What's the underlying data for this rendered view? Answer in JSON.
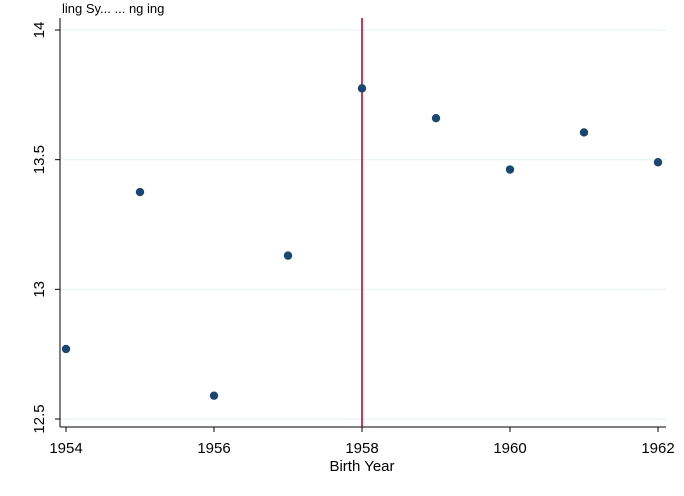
{
  "header": {
    "partial_text": "ling Sy... ... ng    ing"
  },
  "chart_data": {
    "type": "scatter",
    "title": "",
    "xlabel": "Birth Year",
    "ylabel": "",
    "x": [
      1954,
      1955,
      1956,
      1957,
      1958,
      1959,
      1960,
      1961,
      1962
    ],
    "y": [
      12.77,
      13.375,
      12.59,
      13.13,
      13.775,
      13.66,
      13.462,
      13.605,
      13.49
    ],
    "xlim": [
      1954,
      1962
    ],
    "ylim": [
      12.5,
      14
    ],
    "x_ticks": [
      1954,
      1956,
      1958,
      1960,
      1962
    ],
    "y_ticks": [
      12.5,
      13,
      13.5,
      14
    ],
    "x_tick_labels": [
      "1954",
      "1956",
      "1958",
      "1960",
      "1962"
    ],
    "y_tick_labels": [
      "12.5",
      "13",
      "13.5",
      "14"
    ],
    "reference_line_x": 1958,
    "grid": "horizontal",
    "legend": "none"
  },
  "colors": {
    "marker": "#1a476f",
    "reference_line": "#c10534",
    "grid": "#eaf2f3",
    "axis": "#000000"
  }
}
